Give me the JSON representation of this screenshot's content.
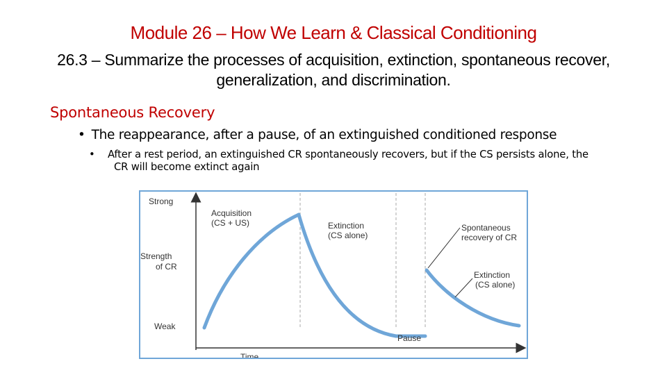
{
  "title": "Module 26 – How We Learn & Classical Conditioning",
  "subtitle": "26.3 – Summarize the processes of acquisition, extinction, spontaneous recover, generalization, and discrimination.",
  "section_heading": "Spontaneous Recovery",
  "bullets": {
    "main": "The reappearance, after a pause, of an extinguished conditioned response",
    "sub": "After a rest period, an extinguished CR spontaneously recovers, but if the CS persists alone, the CR will become extinct again",
    "marker": "•"
  },
  "figure": {
    "y_axis": {
      "top": "Strong",
      "middle_line1": "Strength",
      "middle_line2": "of CR",
      "bottom": "Weak"
    },
    "x_axis": {
      "label": "Time"
    },
    "labels": {
      "acquisition_line1": "Acquisition",
      "acquisition_line2": "(CS + US)",
      "extinction1_line1": "Extinction",
      "extinction1_line2": "(CS alone)",
      "recovery_line1": "Spontaneous",
      "recovery_line2": "recovery of CR",
      "extinction2_line1": "Extinction",
      "extinction2_line2": "(CS alone)",
      "pause": "Pause"
    },
    "colors": {
      "curve": "#6fa6d8",
      "border": "#6fa6d8",
      "title": "#c00000"
    }
  }
}
